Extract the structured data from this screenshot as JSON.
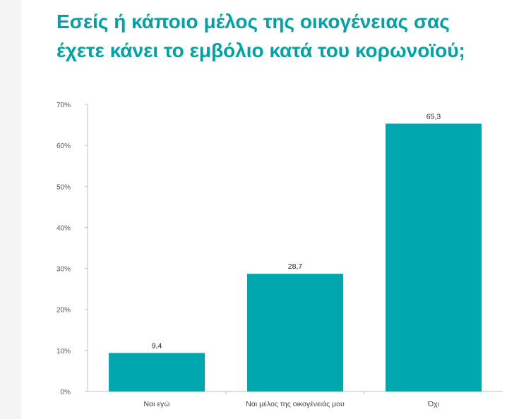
{
  "title": {
    "line1": "Εσείς ή κάποιο μέλος της οικογένειας σας",
    "line2": "έχετε κάνει το εμβόλιο κατά του κορωνοϊού;"
  },
  "colors": {
    "title": "#00a2a6",
    "bar": "#00a7ae",
    "axis": "#bfbfbf",
    "background": "#ffffff"
  },
  "chart_data": {
    "type": "bar",
    "title": "Εσείς ή κάποιο μέλος της οικογένειας σας έχετε κάνει το εμβόλιο κατά του κορωνοϊού;",
    "categories": [
      "Ναι εγώ",
      "Ναι μέλος της οικογένειάς μου",
      "Όχι"
    ],
    "values": [
      9.4,
      28.7,
      65.3
    ],
    "value_labels": [
      "9,4",
      "28,7",
      "65,3"
    ],
    "ylim": [
      0,
      70
    ],
    "y_ticks": [
      0,
      10,
      20,
      30,
      40,
      50,
      60,
      70
    ],
    "y_tick_labels": [
      "0%",
      "10%",
      "20%",
      "30%",
      "40%",
      "50%",
      "60%",
      "70%"
    ],
    "xlabel": "",
    "ylabel": "",
    "grid": false,
    "legend": "none"
  }
}
